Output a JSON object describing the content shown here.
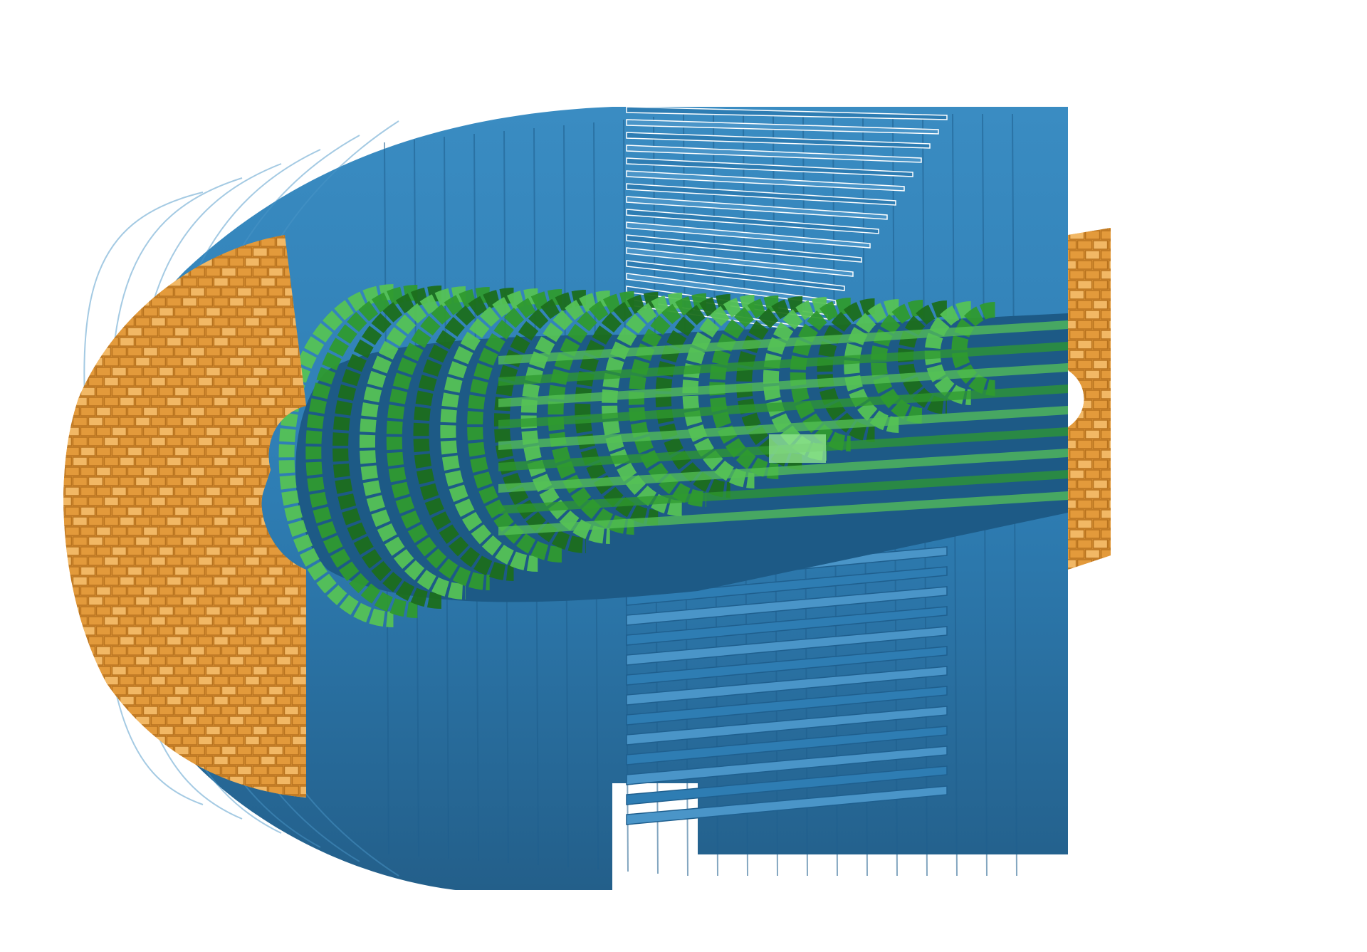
{
  "scene": {
    "background_color": "#ffffff",
    "components": [
      {
        "id": "outer-detector",
        "color": "#2e7db3",
        "shade": "#1f5f8e",
        "highlight": "#4a95c8"
      },
      {
        "id": "endcap-detector",
        "color": "#e39a3b",
        "shade": "#b8731f",
        "highlight": "#f2b865"
      },
      {
        "id": "inner-tracker",
        "color": "#2f9a2f",
        "shade": "#1c6e1c",
        "highlight": "#55c255"
      }
    ]
  }
}
